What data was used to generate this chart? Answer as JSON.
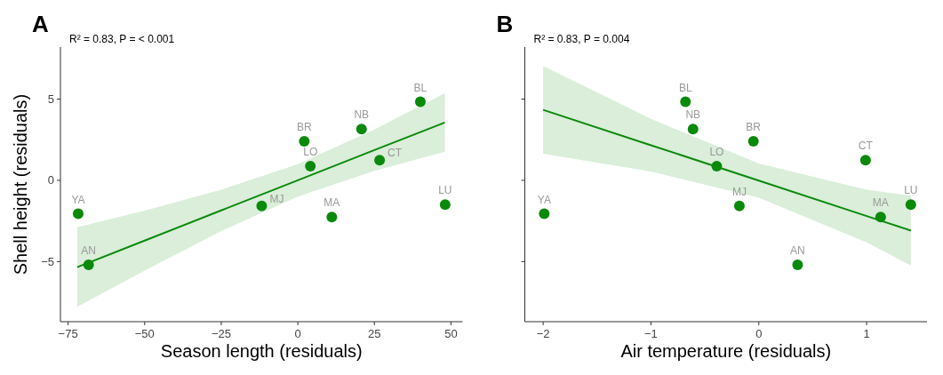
{
  "chart_data": [
    {
      "type": "scatter",
      "title": "A",
      "subtitle": "R² = 0.83, P = < 0.001",
      "xlabel": "Season length (residuals)",
      "ylabel": "Shell height (residuals)",
      "xlim": [
        -77.5,
        53.8
      ],
      "ylim": [
        -8.7,
        8.2
      ],
      "xticks": [
        -75,
        -50,
        -25,
        0,
        25,
        50
      ],
      "yticks": [
        -5,
        0,
        5
      ],
      "grid": false,
      "marker": "circle",
      "series": [
        {
          "type": "line",
          "marker": "none",
          "color": "#0a8a0a",
          "x": [
            -72,
            -50,
            -25,
            0,
            25,
            48
          ],
          "values": [
            -5.34,
            -3.71,
            -1.85,
            0,
            1.86,
            3.56
          ],
          "lower": [
            -7.79,
            -5.56,
            -3.12,
            -1,
            0.59,
            1.76
          ],
          "upper": [
            -2.89,
            -1.86,
            -0.58,
            1,
            3.13,
            5.36
          ]
        },
        {
          "color": "#0a8a0a",
          "x": [
            -71.7,
            -68.3,
            -11.8,
            2.1,
            4.1,
            11.1,
            20.8,
            26.7,
            40.0,
            48.1
          ],
          "values": [
            -2.06,
            -5.2,
            -1.57,
            2.4,
            0.87,
            -2.26,
            3.16,
            1.24,
            4.83,
            -1.49
          ]
        }
      ],
      "annotations": [
        {
          "text": "YA",
          "x": -71.7,
          "y": -2.06
        },
        {
          "text": "AN",
          "x": -68.3,
          "y": -5.2
        },
        {
          "text": "MJ",
          "x": -11.8,
          "y": -1.57
        },
        {
          "text": "BR",
          "x": 2.1,
          "y": 2.4
        },
        {
          "text": "LO",
          "x": 4.1,
          "y": 0.87
        },
        {
          "text": "MA",
          "x": 11.1,
          "y": -2.26
        },
        {
          "text": "NB",
          "x": 20.8,
          "y": 3.16
        },
        {
          "text": "CT",
          "x": 26.7,
          "y": 1.24
        },
        {
          "text": "BL",
          "x": 40.0,
          "y": 4.83
        },
        {
          "text": "LU",
          "x": 48.1,
          "y": -1.49
        }
      ]
    },
    {
      "type": "scatter",
      "title": "B",
      "subtitle": "R² = 0.83, P = 0.004",
      "xlabel": "Air temperature (residuals)",
      "xlim": [
        -2.17,
        1.56
      ],
      "ylim": [
        -8.7,
        8.2
      ],
      "xticks": [
        -2,
        -1,
        0,
        1
      ],
      "yticks": [
        -5,
        0,
        5
      ],
      "tick_labels": "x",
      "grid": false,
      "marker": "circle",
      "series": [
        {
          "type": "line",
          "marker": "none",
          "color": "#0a8a0a",
          "x": [
            -2,
            -1,
            0,
            1,
            1.41
          ],
          "values": [
            4.34,
            2.16,
            -0.02,
            -2.2,
            -3.09
          ],
          "lower": [
            1.64,
            0.54,
            -1.07,
            -3.82,
            -5.24
          ],
          "upper": [
            7.04,
            3.78,
            1.03,
            -0.58,
            -0.94
          ]
        },
        {
          "color": "#0a8a0a",
          "x": [
            -1.99,
            -0.68,
            -0.61,
            -0.05,
            -0.39,
            -0.18,
            0.99,
            1.13,
            1.41,
            0.36
          ],
          "values": [
            -2.06,
            4.83,
            3.16,
            2.4,
            0.87,
            -1.57,
            1.24,
            -2.26,
            -1.49,
            -5.2
          ]
        }
      ],
      "annotations": [
        {
          "text": "YA",
          "x": -1.99,
          "y": -2.06
        },
        {
          "text": "BL",
          "x": -0.68,
          "y": 4.83
        },
        {
          "text": "NB",
          "x": -0.61,
          "y": 3.16
        },
        {
          "text": "BR",
          "x": -0.05,
          "y": 2.4
        },
        {
          "text": "LO",
          "x": -0.39,
          "y": 0.87
        },
        {
          "text": "MJ",
          "x": -0.18,
          "y": -1.57
        },
        {
          "text": "CT",
          "x": 0.99,
          "y": 1.24
        },
        {
          "text": "MA",
          "x": 1.13,
          "y": -2.26
        },
        {
          "text": "LU",
          "x": 1.41,
          "y": -1.49
        },
        {
          "text": "AN",
          "x": 0.36,
          "y": -5.2
        }
      ]
    }
  ]
}
